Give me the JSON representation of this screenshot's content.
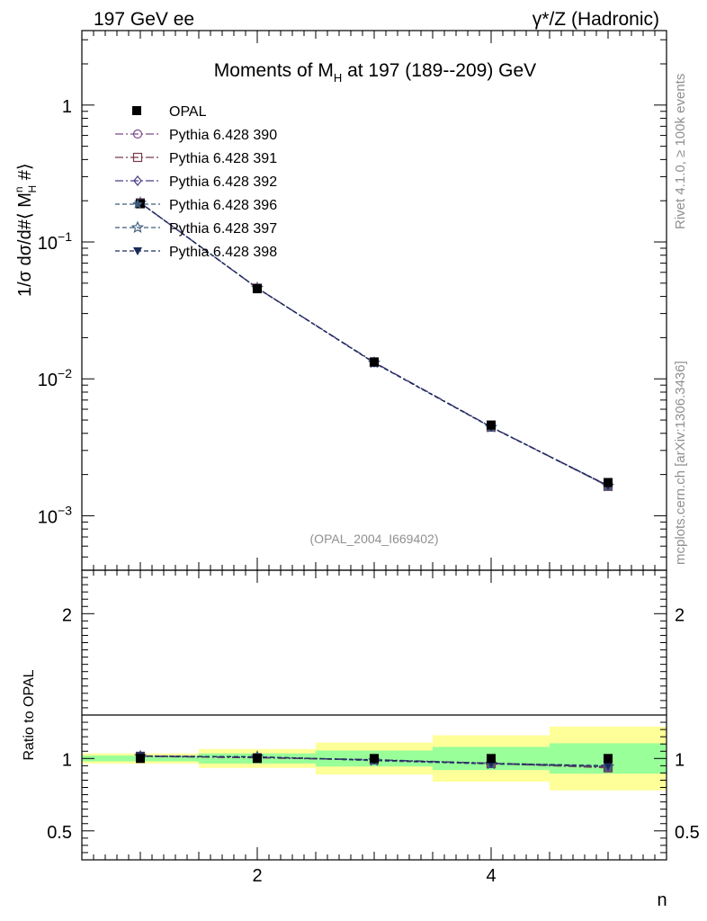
{
  "header": {
    "left": "197 GeV ee",
    "right": "γ*/Z (Hadronic)"
  },
  "side_labels": {
    "rivet": "Rivet 4.1.0, ≥ 100k events",
    "mcplots": "mcplots.cern.ch [arXiv:1306.3436]"
  },
  "chart_data": [
    {
      "type": "scatter",
      "panel": "main",
      "title": "Moments of M_H at 197 (189--209) GeV",
      "title_parts": {
        "pre": "Moments of M",
        "sub": "H",
        "post": " at 197 (189--209) GeV"
      },
      "ylabel": "1/σ  dσ/d#⟨ M_H^n #⟩",
      "ylabel_parts": {
        "pre": "1/σ   dσ/d#⟨ M",
        "sup": "n",
        "sub": "H",
        "post": " #⟩"
      },
      "xlabel": "n",
      "yscale": "log",
      "ylim": [
        0.0004,
        3.5
      ],
      "xlim": [
        0.5,
        5.5
      ],
      "y_tick_labels": [
        {
          "value": 1,
          "base": "1",
          "exp": ""
        },
        {
          "value": 0.1,
          "base": "10",
          "exp": "−1"
        },
        {
          "value": 0.01,
          "base": "10",
          "exp": "−2"
        },
        {
          "value": 0.001,
          "base": "10",
          "exp": "−3"
        }
      ],
      "watermark": "(OPAL_2004_I669402)",
      "x": [
        1,
        2,
        3,
        4,
        5
      ],
      "series": [
        {
          "name": "OPAL",
          "values": [
            0.19,
            0.0455,
            0.0133,
            0.0046,
            0.00175
          ],
          "color": "#000000",
          "marker": "square-filled",
          "dash": ""
        },
        {
          "name": "Pythia 6.428 390",
          "values": [
            0.193,
            0.046,
            0.0132,
            0.00445,
            0.00165
          ],
          "color": "#7a4a8a",
          "marker": "circle-open",
          "dash": "9,3,2,3"
        },
        {
          "name": "Pythia 6.428 391",
          "values": [
            0.193,
            0.046,
            0.0132,
            0.00445,
            0.00164
          ],
          "color": "#7a3a4a",
          "marker": "square-open",
          "dash": "9,3,2,3"
        },
        {
          "name": "Pythia 6.428 392",
          "values": [
            0.193,
            0.046,
            0.0132,
            0.00446,
            0.00166
          ],
          "color": "#4a3a8a",
          "marker": "diamond-open",
          "dash": "9,3,2,3"
        },
        {
          "name": "Pythia 6.428 396",
          "values": [
            0.193,
            0.0461,
            0.0131,
            0.00443,
            0.00166
          ],
          "color": "#3a5a7a",
          "marker": "star-filled",
          "dash": "5,3"
        },
        {
          "name": "Pythia 6.428 397",
          "values": [
            0.193,
            0.0461,
            0.0131,
            0.00443,
            0.00165
          ],
          "color": "#3a5a7a",
          "marker": "star-open",
          "dash": "5,3"
        },
        {
          "name": "Pythia 6.428 398",
          "values": [
            0.193,
            0.046,
            0.0131,
            0.00444,
            0.00166
          ],
          "color": "#1a2a5a",
          "marker": "triangle-down-filled",
          "dash": "5,3"
        }
      ]
    },
    {
      "type": "scatter",
      "panel": "ratio",
      "ylabel": "Ratio to OPAL",
      "xlabel": "n",
      "ylim": [
        0.3,
        2.3
      ],
      "xlim": [
        0.5,
        5.5
      ],
      "y_ticks": [
        0.5,
        1,
        2
      ],
      "y_tick_labels": [
        "0.5",
        "1",
        "2"
      ],
      "x_ticks": [
        2,
        4
      ],
      "x_tick_labels": [
        "2",
        "4"
      ],
      "bands": [
        {
          "x0": 0.5,
          "x1": 1.5,
          "green": [
            0.98,
            1.02
          ],
          "yellow": [
            0.965,
            1.035
          ]
        },
        {
          "x0": 1.5,
          "x1": 2.5,
          "green": [
            0.965,
            1.035
          ],
          "yellow": [
            0.935,
            1.065
          ]
        },
        {
          "x0": 2.5,
          "x1": 3.5,
          "green": [
            0.945,
            1.055
          ],
          "yellow": [
            0.89,
            1.11
          ]
        },
        {
          "x0": 3.5,
          "x1": 4.5,
          "green": [
            0.92,
            1.08
          ],
          "yellow": [
            0.84,
            1.16
          ]
        },
        {
          "x0": 4.5,
          "x1": 5.5,
          "green": [
            0.895,
            1.105
          ],
          "yellow": [
            0.78,
            1.22
          ]
        }
      ],
      "x": [
        1,
        2,
        3,
        4,
        5
      ],
      "series": [
        {
          "name": "OPAL",
          "values": [
            1.0,
            1.0,
            1.0,
            1.0,
            1.0
          ]
        },
        {
          "name": "Pythia 6.428 390",
          "values": [
            1.015,
            1.005,
            0.99,
            0.965,
            0.94
          ]
        },
        {
          "name": "Pythia 6.428 391",
          "values": [
            1.015,
            1.005,
            0.99,
            0.965,
            0.935
          ]
        },
        {
          "name": "Pythia 6.428 392",
          "values": [
            1.018,
            1.008,
            0.992,
            0.968,
            0.945
          ]
        },
        {
          "name": "Pythia 6.428 396",
          "values": [
            1.015,
            1.012,
            0.985,
            0.962,
            0.948
          ]
        },
        {
          "name": "Pythia 6.428 397",
          "values": [
            1.015,
            1.012,
            0.985,
            0.962,
            0.943
          ]
        },
        {
          "name": "Pythia 6.428 398",
          "values": [
            1.018,
            1.01,
            0.99,
            0.966,
            0.95
          ]
        }
      ]
    }
  ]
}
